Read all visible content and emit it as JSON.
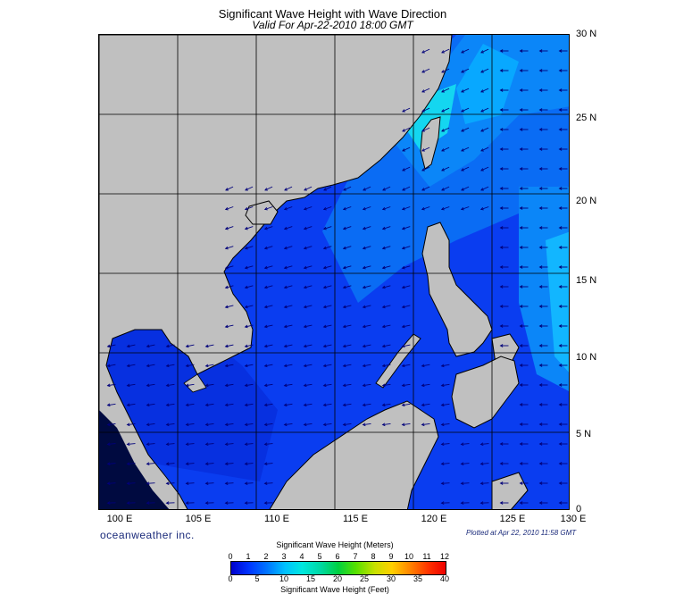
{
  "header": {
    "title": "Significant Wave Height with Wave Direction",
    "subtitle": "Valid For Apr-22-2010 18:00 GMT"
  },
  "map": {
    "lon_labels": [
      "100 E",
      "105 E",
      "110 E",
      "115 E",
      "120 E",
      "125 E",
      "130 E"
    ],
    "lat_labels": [
      "30 N",
      "25 N",
      "20 N",
      "15 N",
      "10 N",
      "5 N",
      "0"
    ],
    "lon_range": [
      100,
      130
    ],
    "lat_range": [
      0,
      30
    ],
    "colors": {
      "land": "#c0c0c0",
      "sea_base": "#0a3df0",
      "sea_light": "#00a8ff",
      "sea_pale": "#14d6f0",
      "arrow": "#00007a"
    }
  },
  "footer": {
    "brand": "oceanweather inc.",
    "plotted": "Plotted at Apr 22, 2010 11:58 GMT"
  },
  "scale": {
    "meters_title": "Significant Wave Height (Meters)",
    "feet_title": "Significant Wave Height (Feet)",
    "meters_ticks": [
      "0",
      "1",
      "2",
      "3",
      "4",
      "5",
      "6",
      "7",
      "8",
      "9",
      "10",
      "11",
      "12"
    ],
    "feet_ticks": [
      "0",
      "5",
      "10",
      "15",
      "20",
      "25",
      "30",
      "35",
      "40"
    ]
  }
}
